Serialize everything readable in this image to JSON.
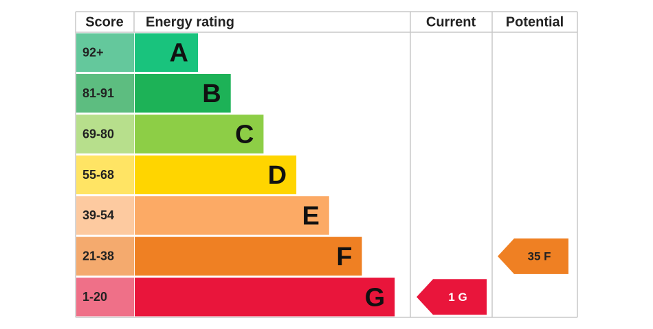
{
  "header": {
    "score": "Score",
    "rating": "Energy rating",
    "current": "Current",
    "potential": "Potential"
  },
  "bands": [
    {
      "score": "92+",
      "letter": "A",
      "color": "#19c37d",
      "score_color": "#64c89c"
    },
    {
      "score": "81-91",
      "letter": "B",
      "color": "#1db257",
      "score_color": "#5dbd80"
    },
    {
      "score": "69-80",
      "letter": "C",
      "color": "#8dce46",
      "score_color": "#b7df8c"
    },
    {
      "score": "55-68",
      "letter": "D",
      "color": "#ffd500",
      "score_color": "#ffe464"
    },
    {
      "score": "39-54",
      "letter": "E",
      "color": "#fcaa65",
      "score_color": "#fdcaa0"
    },
    {
      "score": "21-38",
      "letter": "F",
      "color": "#ef8023",
      "score_color": "#f4aa6e"
    },
    {
      "score": "1-20",
      "letter": "G",
      "color": "#e9153b",
      "score_color": "#ef7088"
    }
  ],
  "current": {
    "label": "1 G"
  },
  "potential": {
    "label": "35 F"
  }
}
